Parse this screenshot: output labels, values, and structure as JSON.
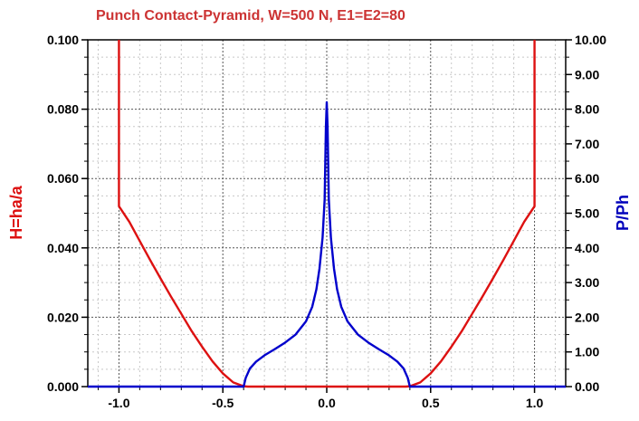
{
  "chart_data": {
    "type": "line",
    "title": "Punch Contact-Pyramid, W=500 N, E1=E2=80",
    "xlabel": "",
    "ylabel_left": "H=ha/a",
    "ylabel_right": "P/Ph",
    "xlim": [
      -1.15,
      1.15
    ],
    "ylim_left": [
      0,
      0.1
    ],
    "ylim_right": [
      0,
      10
    ],
    "grid": true,
    "x_ticks": [
      "-1.0",
      "-0.5",
      "0.0",
      "0.5",
      "1.0"
    ],
    "x_tick_values": [
      -1.0,
      -0.5,
      0.0,
      0.5,
      1.0
    ],
    "y_left_ticks": [
      "0.000",
      "0.020",
      "0.040",
      "0.060",
      "0.080",
      "0.100"
    ],
    "y_left_tick_values": [
      0,
      0.02,
      0.04,
      0.06,
      0.08,
      0.1
    ],
    "y_right_ticks": [
      "0.00",
      "1.00",
      "2.00",
      "3.00",
      "4.00",
      "5.00",
      "6.00",
      "7.00",
      "8.00",
      "9.00",
      "10.00"
    ],
    "y_right_tick_values": [
      0,
      1,
      2,
      3,
      4,
      5,
      6,
      7,
      8,
      9,
      10
    ],
    "series": [
      {
        "axis": "left",
        "color": "#dd1111",
        "points": [
          [
            -1.0,
            0.1
          ],
          [
            -1.0,
            0.052
          ],
          [
            -0.95,
            0.0475
          ],
          [
            -0.9,
            0.042
          ],
          [
            -0.85,
            0.0365
          ],
          [
            -0.8,
            0.0312
          ],
          [
            -0.75,
            0.026
          ],
          [
            -0.7,
            0.021
          ],
          [
            -0.65,
            0.016
          ],
          [
            -0.6,
            0.0115
          ],
          [
            -0.55,
            0.0073
          ],
          [
            -0.5,
            0.0038
          ],
          [
            -0.45,
            0.0012
          ],
          [
            -0.4,
            0.0001
          ],
          [
            -0.38,
            0.0
          ],
          [
            0.0,
            0.0
          ],
          [
            0.38,
            0.0
          ],
          [
            0.4,
            0.0001
          ],
          [
            0.45,
            0.0012
          ],
          [
            0.5,
            0.0038
          ],
          [
            0.55,
            0.0073
          ],
          [
            0.6,
            0.0115
          ],
          [
            0.65,
            0.016
          ],
          [
            0.7,
            0.021
          ],
          [
            0.75,
            0.026
          ],
          [
            0.8,
            0.0312
          ],
          [
            0.85,
            0.0365
          ],
          [
            0.9,
            0.042
          ],
          [
            0.95,
            0.0475
          ],
          [
            1.0,
            0.052
          ],
          [
            1.0,
            0.1
          ]
        ]
      },
      {
        "axis": "right",
        "color": "#0000cc",
        "points": [
          [
            -1.15,
            0.0
          ],
          [
            -0.4,
            0.0
          ],
          [
            -0.39,
            0.25
          ],
          [
            -0.37,
            0.52
          ],
          [
            -0.34,
            0.72
          ],
          [
            -0.3,
            0.9
          ],
          [
            -0.25,
            1.08
          ],
          [
            -0.2,
            1.27
          ],
          [
            -0.15,
            1.5
          ],
          [
            -0.1,
            1.88
          ],
          [
            -0.07,
            2.3
          ],
          [
            -0.05,
            2.8
          ],
          [
            -0.035,
            3.4
          ],
          [
            -0.02,
            4.3
          ],
          [
            -0.01,
            5.4
          ],
          [
            -0.004,
            7.5
          ],
          [
            0.0,
            8.2
          ],
          [
            0.004,
            7.5
          ],
          [
            0.01,
            5.4
          ],
          [
            0.02,
            4.3
          ],
          [
            0.035,
            3.4
          ],
          [
            0.05,
            2.8
          ],
          [
            0.07,
            2.3
          ],
          [
            0.1,
            1.88
          ],
          [
            0.15,
            1.5
          ],
          [
            0.2,
            1.27
          ],
          [
            0.25,
            1.08
          ],
          [
            0.3,
            0.9
          ],
          [
            0.34,
            0.72
          ],
          [
            0.37,
            0.52
          ],
          [
            0.39,
            0.25
          ],
          [
            0.4,
            0.0
          ],
          [
            1.15,
            0.0
          ]
        ]
      }
    ]
  }
}
